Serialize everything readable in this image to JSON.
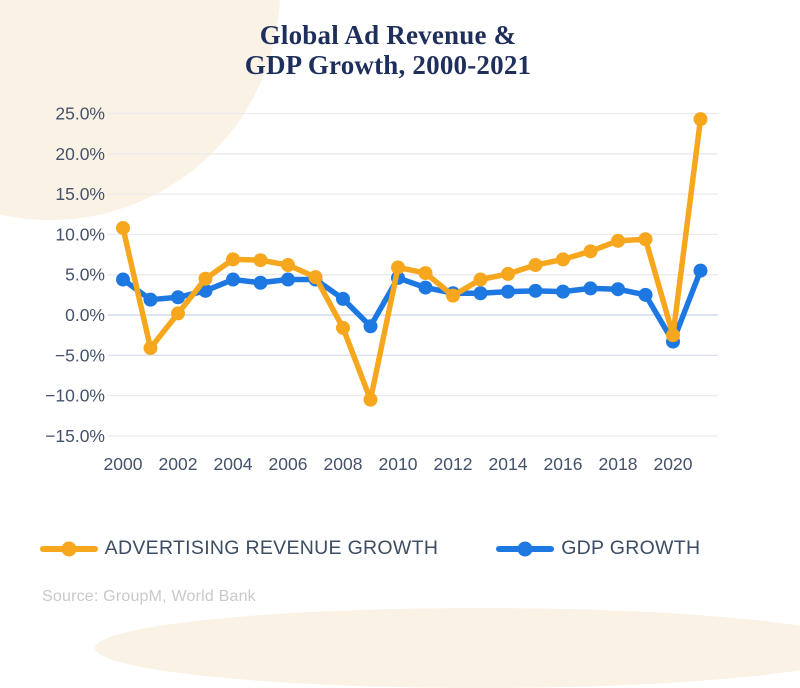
{
  "title": {
    "line1": "Global Ad Revenue &",
    "line2": "GDP Growth, 2000-2021"
  },
  "source": "Source: GroupM, World Bank",
  "legend": {
    "items": [
      {
        "label": "ADVERTISING REVENUE GROWTH",
        "color": "#F6A71D"
      },
      {
        "label": "GDP GROWTH",
        "color": "#1E78E1"
      }
    ]
  },
  "colors": {
    "accent_orange": "#F6A71D",
    "accent_blue": "#1E78E1",
    "title_navy": "#1F2F5C",
    "axis_text": "#45526C",
    "grid_line": "#EAEAEF",
    "grid_zero_line": "#C7D2EC",
    "grid_minus5_line": "#DBE1F2",
    "background_cream": "#FAF2E5",
    "source_gray": "#C9C9C9"
  },
  "chart_data": {
    "type": "line",
    "title": "Global Ad Revenue & GDP Growth, 2000-2021",
    "x": [
      2000,
      2001,
      2002,
      2003,
      2004,
      2005,
      2006,
      2007,
      2008,
      2009,
      2010,
      2011,
      2012,
      2013,
      2014,
      2015,
      2016,
      2017,
      2018,
      2019,
      2020,
      2021
    ],
    "series": [
      {
        "name": "ADVERTISING REVENUE GROWTH",
        "color": "#F6A71D",
        "values": [
          10.8,
          -4.1,
          0.2,
          4.5,
          6.9,
          6.8,
          6.2,
          4.7,
          -1.6,
          -10.5,
          5.9,
          5.2,
          2.4,
          4.4,
          5.1,
          6.2,
          6.9,
          7.9,
          9.2,
          9.4,
          -2.5,
          24.3
        ]
      },
      {
        "name": "GDP GROWTH",
        "color": "#1E78E1",
        "values": [
          4.4,
          1.9,
          2.2,
          3.0,
          4.4,
          4.0,
          4.4,
          4.4,
          2.0,
          -1.4,
          4.6,
          3.4,
          2.7,
          2.7,
          2.9,
          3.0,
          2.9,
          3.3,
          3.2,
          2.5,
          -3.3,
          5.5
        ]
      }
    ],
    "ylim": [
      -15,
      25
    ],
    "y_ticks": [
      25,
      20,
      15,
      10,
      5,
      0,
      -5,
      -10,
      -15
    ],
    "y_tick_labels": [
      "25.0%",
      "20.0%",
      "15.0%",
      "10.0%",
      "5.0%",
      "0.0%",
      "−5.0%",
      "−10.0%",
      "−15.0%"
    ],
    "x_tick_labels": [
      "2000",
      "2002",
      "2004",
      "2006",
      "2008",
      "2010",
      "2012",
      "2014",
      "2016",
      "2018",
      "2020"
    ],
    "grid": true,
    "legend_position": "bottom",
    "unit": "percent"
  }
}
